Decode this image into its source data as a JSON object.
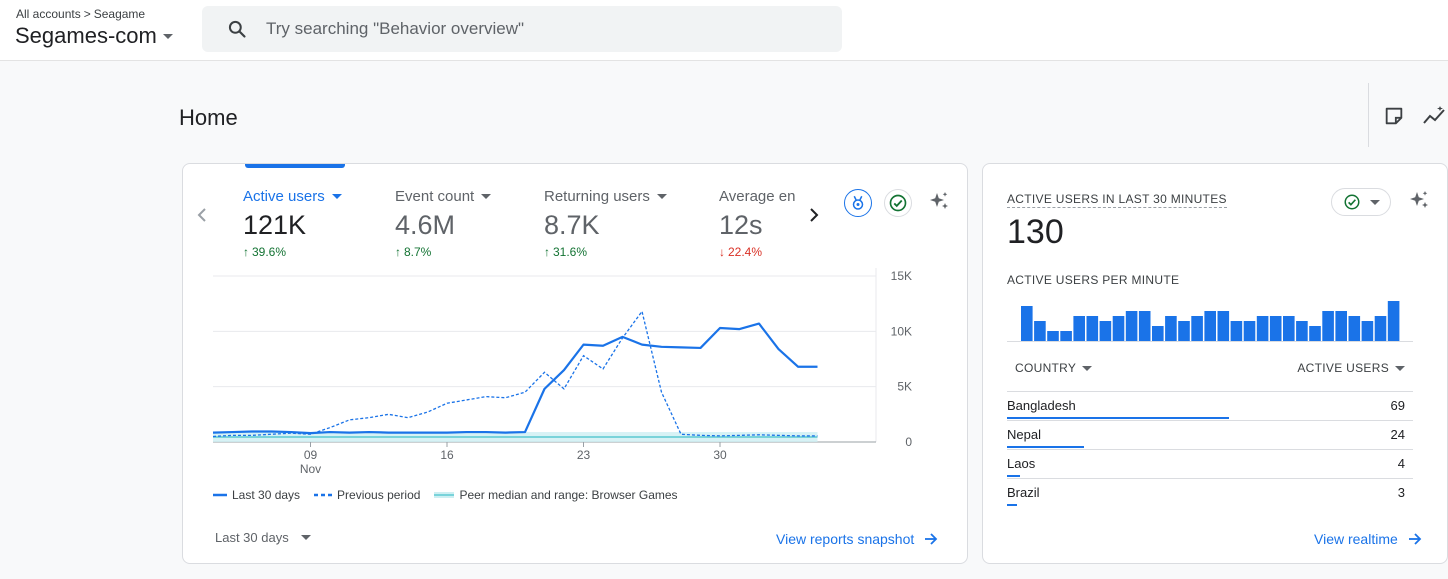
{
  "header": {
    "breadcrumb_root": "All accounts",
    "breadcrumb_sep": ">",
    "breadcrumb_leaf": "Seagame",
    "account_name": "Segames-com",
    "search_placeholder": "Try searching \"Behavior overview\""
  },
  "page": {
    "title": "Home"
  },
  "metrics": [
    {
      "label": "Active users",
      "value": "121K",
      "change": "39.6%",
      "direction": "up",
      "active": true
    },
    {
      "label": "Event count",
      "value": "4.6M",
      "change": "8.7%",
      "direction": "up",
      "active": false
    },
    {
      "label": "Returning users",
      "value": "8.7K",
      "change": "31.6%",
      "direction": "up",
      "active": false
    },
    {
      "label": "Average engagement time",
      "value": "12s",
      "change": "22.4%",
      "direction": "down",
      "active": false
    }
  ],
  "chart_data": {
    "type": "line",
    "ylim": [
      0,
      15000
    ],
    "yticks": [
      0,
      5000,
      10000,
      15000
    ],
    "ytick_labels": [
      "0",
      "5K",
      "10K",
      "15K"
    ],
    "xlim": [
      4,
      38
    ],
    "xticks": [
      {
        "x": 9,
        "label": "09",
        "sublabel": "Nov"
      },
      {
        "x": 16,
        "label": "16",
        "sublabel": ""
      },
      {
        "x": 23,
        "label": "23",
        "sublabel": ""
      },
      {
        "x": 30,
        "label": "30",
        "sublabel": ""
      }
    ],
    "series": [
      {
        "name": "Last 30 days",
        "style": "solid",
        "x": [
          4,
          5,
          6,
          7,
          8,
          9,
          10,
          11,
          12,
          13,
          14,
          15,
          16,
          17,
          18,
          19,
          20,
          21,
          22,
          23,
          24,
          25,
          26,
          27,
          28,
          29,
          30,
          31,
          32,
          33,
          34,
          35
        ],
        "values": [
          850,
          900,
          950,
          950,
          900,
          800,
          900,
          850,
          900,
          850,
          850,
          850,
          850,
          900,
          900,
          850,
          900,
          4800,
          6500,
          8800,
          8700,
          9500,
          8800,
          8600,
          8550,
          8500,
          10300,
          10200,
          10700,
          8400,
          6800,
          6800
        ]
      },
      {
        "name": "Previous period",
        "style": "dashed",
        "x": [
          4,
          5,
          6,
          7,
          8,
          9,
          10,
          11,
          12,
          13,
          14,
          15,
          16,
          17,
          18,
          19,
          20,
          21,
          22,
          23,
          24,
          25,
          26,
          27,
          28,
          29,
          30,
          31,
          32,
          33,
          34,
          35
        ],
        "values": [
          500,
          600,
          600,
          700,
          800,
          700,
          1300,
          2000,
          2200,
          2500,
          2200,
          2700,
          3500,
          3800,
          4100,
          4000,
          4500,
          6300,
          4800,
          7800,
          6600,
          9400,
          11800,
          4500,
          700,
          600,
          550,
          600,
          650,
          600,
          550,
          550
        ]
      },
      {
        "name": "Peer median and range: Browser Games",
        "style": "band",
        "x": [
          4,
          35
        ],
        "values": [
          450,
          450
        ],
        "band_low": [
          0,
          0
        ],
        "band_high": [
          900,
          900
        ]
      }
    ]
  },
  "range_selector": {
    "label": "Last 30 days"
  },
  "view_snapshot": {
    "label": "View reports snapshot"
  },
  "realtime": {
    "title": "ACTIVE USERS IN LAST 30 MINUTES",
    "value": "130",
    "subtitle": "ACTIVE USERS PER MINUTE",
    "per_minute": [
      7,
      4,
      2,
      2,
      5,
      5,
      4,
      5,
      6,
      6,
      3,
      5,
      4,
      5,
      6,
      6,
      4,
      4,
      5,
      5,
      5,
      4,
      3,
      6,
      6,
      5,
      4,
      5,
      8,
      0
    ],
    "country_header": "COUNTRY",
    "users_header": "ACTIVE USERS",
    "countries": [
      {
        "name": "Bangladesh",
        "users": 69
      },
      {
        "name": "Nepal",
        "users": 24
      },
      {
        "name": "Laos",
        "users": 4
      },
      {
        "name": "Brazil",
        "users": 3
      }
    ],
    "link_label": "View realtime"
  },
  "colors": {
    "accent": "#1a73e8",
    "positive": "#137333",
    "negative": "#d93025",
    "peer": "#79d3da"
  }
}
